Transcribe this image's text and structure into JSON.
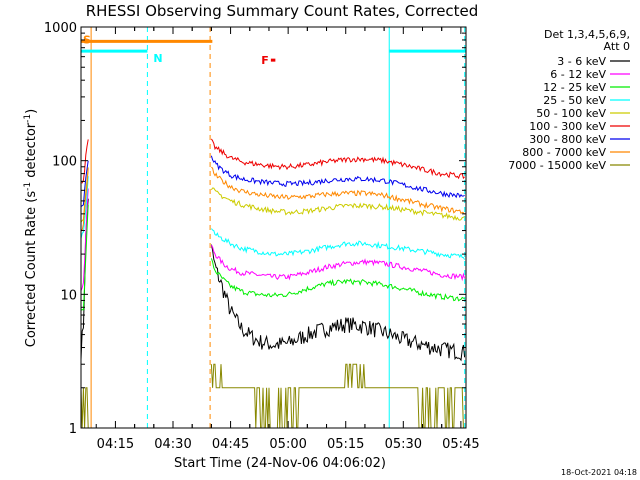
{
  "chart_data": {
    "type": "line",
    "title": "RHESSI Observing Summary Count Rates, Corrected",
    "xlabel": "Start Time (24-Nov-06 04:06:02)",
    "ylabel_main": "Corrected Count Rate (s",
    "ylabel_sup1": "-1",
    "ylabel_mid": " detector",
    "ylabel_sup2": "-1",
    "ylabel_end": ")",
    "yscale": "log",
    "ylim": [
      1,
      1000
    ],
    "xlim": [
      "04:06:02",
      "05:46:20"
    ],
    "x_ticks": [
      "04:15",
      "04:30",
      "04:45",
      "05:00",
      "05:15",
      "05:30",
      "05:45"
    ],
    "y_ticks": [
      "1",
      "10",
      "100",
      "1000"
    ],
    "legend": {
      "header": [
        "Det 1,3,4,5,6,9,",
        "Att 0"
      ],
      "entries": [
        {
          "label": "3 - 6 keV",
          "color": "#000000"
        },
        {
          "label": "6 - 12 keV",
          "color": "#ff00ff"
        },
        {
          "label": "12 - 25 keV",
          "color": "#00ee00"
        },
        {
          "label": "25 - 50 keV",
          "color": "#00ffff"
        },
        {
          "label": "50 - 100 keV",
          "color": "#cccc00"
        },
        {
          "label": "100 - 300 keV",
          "color": "#ee0000"
        },
        {
          "label": "300 - 800 keV",
          "color": "#0000ee"
        },
        {
          "label": "800 - 7000 keV",
          "color": "#ff8800"
        },
        {
          "label": "7000 - 15000 keV",
          "color": "#888800"
        }
      ]
    },
    "flag_bars": [
      {
        "label": "S",
        "color": "#ff8800",
        "start": "04:06:02",
        "end": "04:40:15",
        "value": 780
      },
      {
        "label": "N",
        "color": "#00ffff",
        "start": "04:06:02",
        "end": "04:23:20",
        "value": 660
      },
      {
        "label": "N",
        "color": "#00ffff",
        "start": "05:26:20",
        "end": "05:46:20",
        "value": 660
      },
      {
        "label": "F",
        "color": "#ee0000",
        "start": "04:55:30",
        "end": "04:56:40",
        "value": 565,
        "label_only_at": "04:53:00"
      }
    ],
    "vertical_markers": [
      {
        "time": "04:08:40",
        "color": "#ff8800",
        "style": "solid"
      },
      {
        "time": "04:23:20",
        "color": "#00ffff",
        "style": "dashed"
      },
      {
        "time": "04:39:40",
        "color": "#ff8800",
        "style": "dashed"
      },
      {
        "time": "05:26:20",
        "color": "#00ffff",
        "style": "solid"
      },
      {
        "time": "05:46:00",
        "color": "#00ffff",
        "style": "dashed"
      }
    ],
    "series": [
      {
        "name": "3 - 6 keV",
        "color": "#000000",
        "segments": [
          {
            "t": [
              "04:06:02",
              "04:06:40",
              "04:07:20",
              "04:08:00"
            ],
            "v": [
              3.8,
              6,
              30,
              60
            ]
          },
          {
            "t": [
              "04:40:00",
              "04:41:00",
              "04:43:00",
              "04:45:00",
              "04:48:00",
              "04:52:00",
              "04:56:00",
              "05:00:00",
              "05:05:00",
              "05:10:00",
              "05:15:00",
              "05:20:00",
              "05:25:00",
              "05:30:00",
              "05:35:00",
              "05:40:00",
              "05:46:00"
            ],
            "v": [
              22,
              16,
              11,
              7.5,
              5.5,
              4.5,
              4.2,
              4.3,
              5,
              5.6,
              6,
              5.8,
              5.2,
              4.6,
              4.2,
              3.9,
              3.7
            ]
          }
        ]
      },
      {
        "name": "6 - 12 keV",
        "color": "#ff00ff",
        "segments": [
          {
            "t": [
              "04:06:02",
              "04:06:40",
              "04:07:20",
              "04:08:00"
            ],
            "v": [
              11,
              12,
              30,
              70
            ]
          },
          {
            "t": [
              "04:40:00",
              "04:41:00",
              "04:43:00",
              "04:45:00",
              "04:48:00",
              "04:52:00",
              "04:56:00",
              "05:00:00",
              "05:05:00",
              "05:10:00",
              "05:15:00",
              "05:20:00",
              "05:25:00",
              "05:30:00",
              "05:35:00",
              "05:40:00",
              "05:46:00"
            ],
            "v": [
              23,
              20,
              17,
              15.5,
              14.5,
              14,
              13.5,
              13.5,
              14.5,
              16,
              17,
              17.5,
              17,
              16,
              15,
              14,
              13.5
            ]
          }
        ]
      },
      {
        "name": "12 - 25 keV",
        "color": "#00ee00",
        "segments": [
          {
            "t": [
              "04:06:02",
              "04:06:40",
              "04:07:20",
              "04:08:00"
            ],
            "v": [
              7.5,
              8,
              20,
              55
            ]
          },
          {
            "t": [
              "04:40:00",
              "04:41:00",
              "04:43:00",
              "04:45:00",
              "04:48:00",
              "04:52:00",
              "04:56:00",
              "05:00:00",
              "05:05:00",
              "05:10:00",
              "05:15:00",
              "05:20:00",
              "05:25:00",
              "05:30:00",
              "05:35:00",
              "05:40:00",
              "05:46:00"
            ],
            "v": [
              18,
              15,
              13,
              11.5,
              10.5,
              10,
              9.8,
              10,
              11,
              12,
              12.5,
              12.3,
              11.8,
              11,
              10.2,
              9.6,
              9.2
            ]
          }
        ]
      },
      {
        "name": "25 - 50 keV",
        "color": "#00ffff",
        "segments": [
          {
            "t": [
              "04:06:02",
              "04:06:40",
              "04:07:20",
              "04:08:00"
            ],
            "v": [
              27,
              28,
              45,
              80
            ]
          },
          {
            "t": [
              "04:40:00",
              "04:41:00",
              "04:43:00",
              "04:45:00",
              "04:48:00",
              "04:52:00",
              "04:56:00",
              "05:00:00",
              "05:05:00",
              "05:10:00",
              "05:15:00",
              "05:20:00",
              "05:25:00",
              "05:30:00",
              "05:35:00",
              "05:40:00",
              "05:46:00"
            ],
            "v": [
              32,
              28,
              26,
              24,
              22,
              21,
              20,
              20,
              21,
              22.5,
              24,
              24,
              23,
              22,
              21,
              20,
              19
            ]
          }
        ]
      },
      {
        "name": "50 - 100 keV",
        "color": "#cccc00",
        "segments": [
          {
            "t": [
              "04:06:02",
              "04:06:40",
              "04:07:20",
              "04:08:00"
            ],
            "v": [
              36,
              38,
              60,
              100
            ]
          },
          {
            "t": [
              "04:40:00",
              "04:41:00",
              "04:43:00",
              "04:45:00",
              "04:48:00",
              "04:52:00",
              "04:56:00",
              "05:00:00",
              "05:05:00",
              "05:10:00",
              "05:15:00",
              "05:20:00",
              "05:25:00",
              "05:30:00",
              "05:35:00",
              "05:40:00",
              "05:46:00"
            ],
            "v": [
              63,
              58,
              54,
              50,
              47,
              44,
              42,
              41,
              42,
              44,
              46,
              46,
              45,
              43,
              41,
              39,
              37
            ]
          }
        ]
      },
      {
        "name": "100 - 300 keV",
        "color": "#ee0000",
        "segments": [
          {
            "t": [
              "04:06:02",
              "04:06:40",
              "04:07:20",
              "04:08:00"
            ],
            "v": [
              70,
              72,
              110,
              150
            ]
          },
          {
            "t": [
              "04:40:00",
              "04:41:00",
              "04:43:00",
              "04:45:00",
              "04:48:00",
              "04:52:00",
              "04:56:00",
              "05:00:00",
              "05:05:00",
              "05:10:00",
              "05:15:00",
              "05:20:00",
              "05:25:00",
              "05:30:00",
              "05:35:00",
              "05:40:00",
              "05:46:00"
            ],
            "v": [
              140,
              125,
              115,
              105,
              98,
              94,
              91,
              90,
              93,
              98,
              102,
              103,
              100,
              93,
              86,
              80,
              76
            ]
          }
        ]
      },
      {
        "name": "300 - 800 keV",
        "color": "#0000ee",
        "segments": [
          {
            "t": [
              "04:06:02",
              "04:06:40",
              "04:07:20",
              "04:08:00"
            ],
            "v": [
              45,
              48,
              75,
              110
            ]
          },
          {
            "t": [
              "04:40:00",
              "04:41:00",
              "04:43:00",
              "04:45:00",
              "04:48:00",
              "04:52:00",
              "04:56:00",
              "05:00:00",
              "05:05:00",
              "05:10:00",
              "05:15:00",
              "05:20:00",
              "05:25:00",
              "05:30:00",
              "05:35:00",
              "05:40:00",
              "05:46:00"
            ],
            "v": [
              108,
              95,
              85,
              78,
              73,
              70,
              68,
              67,
              68,
              71,
              73,
              73,
              71,
              66,
              61,
              57,
              54
            ]
          }
        ]
      },
      {
        "name": "800 - 7000 keV",
        "color": "#ff8800",
        "segments": [
          {
            "t": [
              "04:06:02",
              "04:06:40",
              "04:07:20",
              "04:08:00"
            ],
            "v": [
              30,
              33,
              55,
              90
            ]
          },
          {
            "t": [
              "04:40:00",
              "04:41:00",
              "04:43:00",
              "04:45:00",
              "04:48:00",
              "04:52:00",
              "04:56:00",
              "05:00:00",
              "05:05:00",
              "05:10:00",
              "05:15:00",
              "05:20:00",
              "05:25:00",
              "05:30:00",
              "05:35:00",
              "05:40:00",
              "05:46:00"
            ],
            "v": [
              88,
              78,
              70,
              64,
              59,
              56,
              54,
              53,
              54,
              56,
              57,
              57,
              55,
              51,
              47,
              44,
              41
            ]
          }
        ]
      },
      {
        "name": "7000 - 15000 keV",
        "color": "#888800",
        "segments": [
          {
            "t": [
              "04:06:02",
              "04:06:30",
              "04:07:00",
              "04:07:30",
              "04:08:00"
            ],
            "v": [
              1,
              2,
              1,
              2,
              1
            ]
          },
          {
            "t": [
              "04:40:00",
              "04:41:00",
              "04:43:00",
              "04:45:00",
              "04:48:00",
              "04:52:00",
              "04:56:00",
              "05:00:00",
              "05:05:00",
              "05:10:00",
              "05:15:00",
              "05:20:00",
              "05:25:00",
              "05:30:00",
              "05:35:00",
              "05:40:00",
              "05:46:00"
            ],
            "v": [
              4,
              3,
              2.5,
              2.2,
              2,
              1.6,
              1.5,
              1.6,
              2,
              2.4,
              2.6,
              2.6,
              2.4,
              2,
              1.7,
              1.5,
              1.4
            ]
          }
        ]
      }
    ]
  },
  "footer": {
    "timestamp": "18-Oct-2021 04:18"
  }
}
